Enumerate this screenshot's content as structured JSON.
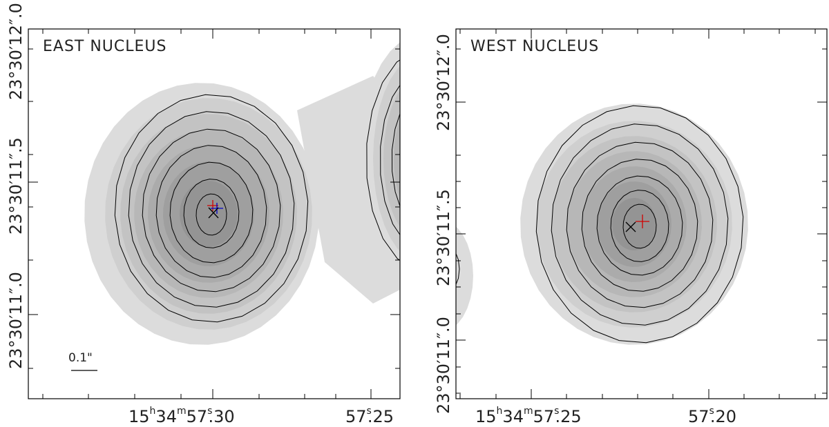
{
  "panels": [
    {
      "id": "east",
      "label": "EAST NUCLEUS",
      "ra_ticks": [
        {
          "h": "15",
          "hs": "h",
          "m": "34",
          "ms": "m",
          "s": "57",
          "ss": "s",
          ".": ".30"
        },
        {
          "prefix": "57",
          "ss": "s",
          "frac": ".25"
        }
      ],
      "dec_ticks": [
        "23°30′12″.0",
        "23°30′11″.5",
        "23°30′11″.0"
      ],
      "scale_bar_label": "0.1\"",
      "markers": [
        {
          "symbol": "plus",
          "color": "#d00000"
        },
        {
          "symbol": "plus",
          "color": "#0000c8"
        },
        {
          "symbol": "cross",
          "color": "#000000"
        }
      ]
    },
    {
      "id": "west",
      "label": "WEST NUCLEUS",
      "ra_ticks": [
        {
          "h": "15",
          "hs": "h",
          "m": "34",
          "ms": "m",
          "s": "57",
          "ss": "s",
          ".": ".25"
        },
        {
          "prefix": "57",
          "ss": "s",
          "frac": ".20"
        }
      ],
      "dec_ticks": [
        "23°30′12″.0",
        "23°30′11″.5",
        "23°30′11″.0"
      ],
      "markers": [
        {
          "symbol": "plus",
          "color": "#d00000"
        },
        {
          "symbol": "cross",
          "color": "#000000"
        }
      ]
    }
  ],
  "colors": {
    "shade_levels": [
      "#dcdcdc",
      "#cfcfcf",
      "#c3c3c3",
      "#b7b7b7",
      "#ababab",
      "#9f9f9f",
      "#949494"
    ],
    "contour": "#000000"
  }
}
